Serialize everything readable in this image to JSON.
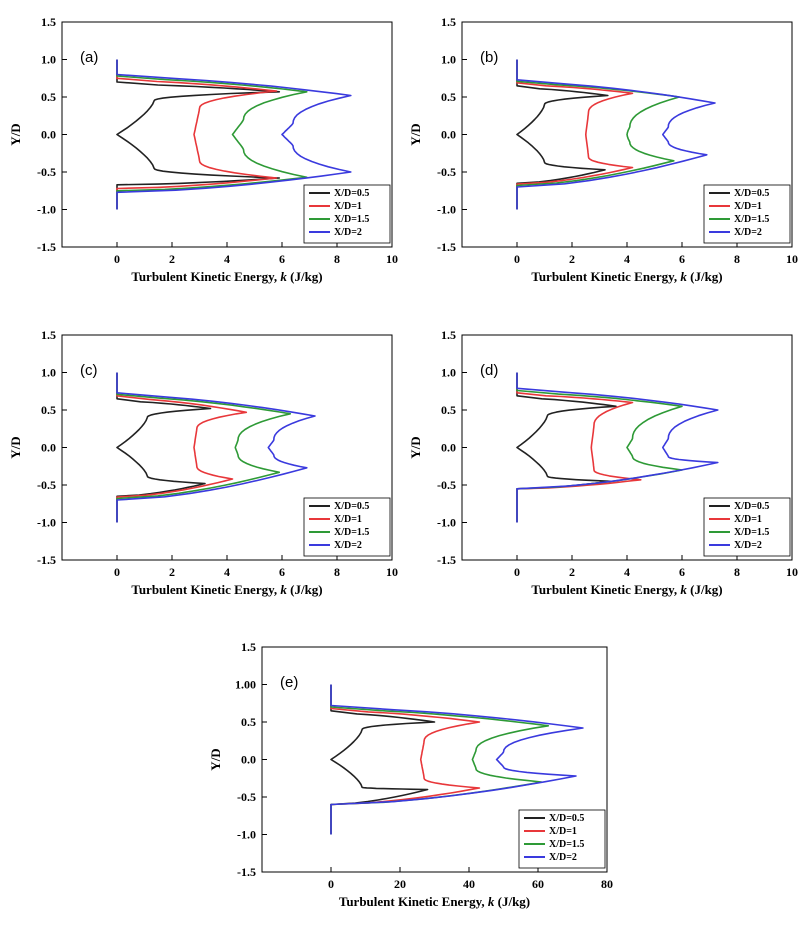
{
  "colors": {
    "black": "#222222",
    "red": "#e8373a",
    "green": "#2e9a36",
    "blue": "#3a3ade"
  },
  "chart_data": [
    {
      "type": "line",
      "label": "(a)",
      "xlabel": "Turbulent Kinetic Energy, k (J/kg)",
      "xlabel_prefix": "Turbulent Kinetic Energy,",
      "xlabel_var": "k",
      "xlabel_suffix": "(J/kg)",
      "ylabel": "Y/D",
      "xlim": [
        -2,
        10
      ],
      "ylim": [
        -1.5,
        1.5
      ],
      "xticks": [
        "0",
        "2",
        "4",
        "6",
        "8",
        "10"
      ],
      "yticks": [
        "1.5",
        "1.0",
        "0.5",
        "0.0",
        "-0.5",
        "-1.0",
        "-1.5"
      ],
      "legend": [
        "X/D=0.5",
        "X/D=1",
        "X/D=1.5",
        "X/D=2"
      ],
      "series": [
        {
          "name": "X/D=0.5",
          "edge": 0.67,
          "peak_y": 0.57,
          "peak_x": 5.9,
          "shoulder_y": 0.45,
          "shoulder_x": 1.35,
          "center_x": 0.0,
          "slope_x": 1.15,
          "lower_peak_y": -0.58,
          "lower_peak_x": 5.9,
          "lower_shoulder_y": -0.45,
          "lower_shoulder_x": 1.35,
          "lower_edge": -0.67
        },
        {
          "name": "X/D=1",
          "edge": 0.72,
          "peak_y": 0.58,
          "peak_x": 5.8,
          "shoulder_y": 0.35,
          "shoulder_x": 3.0,
          "center_x": 2.8,
          "slope_x": 2.9,
          "lower_peak_y": -0.58,
          "lower_peak_x": 5.8,
          "lower_shoulder_y": -0.35,
          "lower_shoulder_x": 3.0,
          "lower_edge": -0.72
        },
        {
          "name": "X/D=1.5",
          "edge": 0.75,
          "peak_y": 0.57,
          "peak_x": 6.9,
          "shoulder_y": 0.2,
          "shoulder_x": 4.6,
          "center_x": 4.2,
          "slope_x": 4.4,
          "lower_peak_y": -0.57,
          "lower_peak_x": 6.9,
          "lower_shoulder_y": -0.2,
          "lower_shoulder_x": 4.6,
          "lower_edge": -0.75
        },
        {
          "name": "X/D=2",
          "edge": 0.77,
          "peak_y": 0.52,
          "peak_x": 8.5,
          "shoulder_y": 0.15,
          "shoulder_x": 6.4,
          "center_x": 6.0,
          "slope_x": 6.2,
          "lower_peak_y": -0.5,
          "lower_peak_x": 8.5,
          "lower_shoulder_y": -0.15,
          "lower_shoulder_x": 6.4,
          "lower_edge": -0.77
        }
      ]
    },
    {
      "type": "line",
      "label": "(b)",
      "xlabel": "Turbulent Kinetic Energy, k (J/kg)",
      "xlabel_prefix": "Turbulent Kinetic Energy,",
      "xlabel_var": "k",
      "xlabel_suffix": "(J/kg)",
      "ylabel": "Y/D",
      "xlim": [
        -2,
        10
      ],
      "ylim": [
        -1.5,
        1.5
      ],
      "xticks": [
        "0",
        "2",
        "4",
        "6",
        "8",
        "10"
      ],
      "yticks": [
        "1.5",
        "1.0",
        "0.5",
        "0.0",
        "-0.5",
        "-1.0",
        "-1.5"
      ],
      "legend": [
        "X/D=0.5",
        "X/D=1",
        "X/D=1.5",
        "X/D=2"
      ],
      "series": [
        {
          "name": "X/D=0.5",
          "edge": 0.62,
          "peak_y": 0.52,
          "peak_x": 3.3,
          "shoulder_y": 0.4,
          "shoulder_x": 1.0,
          "center_x": 0.0,
          "slope_x": 0.9,
          "lower_peak_y": -0.47,
          "lower_peak_x": 3.2,
          "lower_shoulder_y": -0.37,
          "lower_shoulder_x": 1.0,
          "lower_edge": -0.65
        },
        {
          "name": "X/D=1",
          "edge": 0.66,
          "peak_y": 0.55,
          "peak_x": 4.2,
          "shoulder_y": 0.3,
          "shoulder_x": 2.6,
          "center_x": 2.5,
          "slope_x": 2.55,
          "lower_peak_y": -0.44,
          "lower_peak_x": 4.2,
          "lower_shoulder_y": -0.3,
          "lower_shoulder_x": 2.6,
          "lower_edge": -0.66
        },
        {
          "name": "X/D=1.5",
          "edge": 0.68,
          "peak_y": 0.5,
          "peak_x": 5.9,
          "shoulder_y": 0.1,
          "shoulder_x": 4.1,
          "center_x": 4.0,
          "slope_x": 4.0,
          "lower_peak_y": -0.35,
          "lower_peak_x": 5.7,
          "lower_shoulder_y": -0.1,
          "lower_shoulder_x": 4.1,
          "lower_edge": -0.68
        },
        {
          "name": "X/D=2",
          "edge": 0.7,
          "peak_y": 0.42,
          "peak_x": 7.2,
          "shoulder_y": 0.1,
          "shoulder_x": 5.5,
          "center_x": 5.3,
          "slope_x": 5.4,
          "lower_peak_y": -0.27,
          "lower_peak_x": 6.9,
          "lower_shoulder_y": -0.1,
          "lower_shoulder_x": 5.5,
          "lower_edge": -0.7
        }
      ]
    },
    {
      "type": "line",
      "label": "(c)",
      "xlabel": "Turbulent Kinetic Energy, k (J/kg)",
      "xlabel_prefix": "Turbulent Kinetic Energy,",
      "xlabel_var": "k",
      "xlabel_suffix": "(J/kg)",
      "ylabel": "Y/D",
      "xlim": [
        -2,
        10
      ],
      "ylim": [
        -1.5,
        1.5
      ],
      "xticks": [
        "0",
        "2",
        "4",
        "6",
        "8",
        "10"
      ],
      "yticks": [
        "1.5",
        "1.0",
        "0.5",
        "0.0",
        "-0.5",
        "-1.0",
        "-1.5"
      ],
      "legend": [
        "X/D=0.5",
        "X/D=1",
        "X/D=1.5",
        "X/D=2"
      ],
      "series": [
        {
          "name": "X/D=0.5",
          "edge": 0.62,
          "peak_y": 0.52,
          "peak_x": 3.4,
          "shoulder_y": 0.4,
          "shoulder_x": 1.1,
          "center_x": 0.0,
          "slope_x": 0.95,
          "lower_peak_y": -0.48,
          "lower_peak_x": 3.2,
          "lower_shoulder_y": -0.38,
          "lower_shoulder_x": 1.1,
          "lower_edge": -0.65
        },
        {
          "name": "X/D=1",
          "edge": 0.66,
          "peak_y": 0.47,
          "peak_x": 4.7,
          "shoulder_y": 0.25,
          "shoulder_x": 2.9,
          "center_x": 2.8,
          "slope_x": 2.85,
          "lower_peak_y": -0.42,
          "lower_peak_x": 4.2,
          "lower_shoulder_y": -0.25,
          "lower_shoulder_x": 2.9,
          "lower_edge": -0.66
        },
        {
          "name": "X/D=1.5",
          "edge": 0.68,
          "peak_y": 0.45,
          "peak_x": 6.3,
          "shoulder_y": 0.1,
          "shoulder_x": 4.4,
          "center_x": 4.3,
          "slope_x": 4.35,
          "lower_peak_y": -0.33,
          "lower_peak_x": 5.9,
          "lower_shoulder_y": -0.1,
          "lower_shoulder_x": 4.4,
          "lower_edge": -0.68
        },
        {
          "name": "X/D=2",
          "edge": 0.7,
          "peak_y": 0.42,
          "peak_x": 7.2,
          "shoulder_y": 0.1,
          "shoulder_x": 5.7,
          "center_x": 5.5,
          "slope_x": 5.6,
          "lower_peak_y": -0.27,
          "lower_peak_x": 6.9,
          "lower_shoulder_y": -0.1,
          "lower_shoulder_x": 5.7,
          "lower_edge": -0.7
        }
      ]
    },
    {
      "type": "line",
      "label": "(d)",
      "xlabel": "Turbulent Kinetic Energy, k (J/kg)",
      "xlabel_prefix": "Turbulent Kinetic Energy,",
      "xlabel_var": "k",
      "xlabel_suffix": "(J/kg)",
      "ylabel": "Y/D",
      "xlim": [
        -2,
        10
      ],
      "ylim": [
        -1.5,
        1.5
      ],
      "xticks": [
        "0",
        "2",
        "4",
        "6",
        "8",
        "10"
      ],
      "yticks": [
        "1.5",
        "1.0",
        "0.5",
        "0.0",
        "-0.5",
        "-1.0",
        "-1.5"
      ],
      "legend": [
        "X/D=0.5",
        "X/D=1",
        "X/D=1.5",
        "X/D=2"
      ],
      "series": [
        {
          "name": "X/D=0.5",
          "edge": 0.66,
          "peak_y": 0.55,
          "peak_x": 3.6,
          "shoulder_y": 0.42,
          "shoulder_x": 1.1,
          "center_x": 0.0,
          "slope_x": 0.95,
          "lower_peak_y": -0.45,
          "lower_peak_x": 3.4,
          "lower_shoulder_y": -0.38,
          "lower_shoulder_x": 1.1,
          "lower_edge": -0.55
        },
        {
          "name": "X/D=1",
          "edge": 0.7,
          "peak_y": 0.6,
          "peak_x": 4.2,
          "shoulder_y": 0.3,
          "shoulder_x": 2.8,
          "center_x": 2.7,
          "slope_x": 2.75,
          "lower_peak_y": -0.43,
          "lower_peak_x": 4.5,
          "lower_shoulder_y": -0.3,
          "lower_shoulder_x": 2.8,
          "lower_edge": -0.55
        },
        {
          "name": "X/D=1.5",
          "edge": 0.73,
          "peak_y": 0.55,
          "peak_x": 6.0,
          "shoulder_y": 0.12,
          "shoulder_x": 4.2,
          "center_x": 4.0,
          "slope_x": 4.1,
          "lower_peak_y": -0.3,
          "lower_peak_x": 6.0,
          "lower_shoulder_y": -0.12,
          "lower_shoulder_x": 4.2,
          "lower_edge": -0.55
        },
        {
          "name": "X/D=2",
          "edge": 0.76,
          "peak_y": 0.5,
          "peak_x": 7.3,
          "shoulder_y": 0.12,
          "shoulder_x": 5.5,
          "center_x": 5.3,
          "slope_x": 5.4,
          "lower_peak_y": -0.2,
          "lower_peak_x": 7.3,
          "lower_shoulder_y": -0.12,
          "lower_shoulder_x": 5.5,
          "lower_edge": -0.55
        }
      ]
    },
    {
      "type": "line",
      "label": "(e)",
      "xlabel": "Turbulent Kinetic Energy, k (J/kg)",
      "xlabel_prefix": "Turbulent Kinetic Energy,",
      "xlabel_var": "k",
      "xlabel_suffix": "(J/kg)",
      "ylabel": "Y/D",
      "xlim": [
        -20,
        80
      ],
      "ylim": [
        -1.5,
        1.5
      ],
      "xticks": [
        "0",
        "20",
        "40",
        "60",
        "80"
      ],
      "yticks": [
        "1.5",
        "1.00",
        "0.5",
        "0.0",
        "-0.5",
        "-1.0",
        "-1.5"
      ],
      "legend": [
        "X/D=0.5",
        "X/D=1",
        "X/D=1.5",
        "X/D=2"
      ],
      "series": [
        {
          "name": "X/D=0.5",
          "edge": 0.62,
          "peak_y": 0.5,
          "peak_x": 30,
          "shoulder_y": 0.4,
          "shoulder_x": 9,
          "center_x": 0,
          "slope_x": 8,
          "lower_peak_y": -0.4,
          "lower_peak_x": 28,
          "lower_shoulder_y": -0.37,
          "lower_shoulder_x": 9,
          "lower_edge": -0.6
        },
        {
          "name": "X/D=1",
          "edge": 0.65,
          "peak_y": 0.5,
          "peak_x": 43,
          "shoulder_y": 0.25,
          "shoulder_x": 27,
          "center_x": 26,
          "slope_x": 26.5,
          "lower_peak_y": -0.38,
          "lower_peak_x": 43,
          "lower_shoulder_y": -0.25,
          "lower_shoulder_x": 27,
          "lower_edge": -0.6
        },
        {
          "name": "X/D=1.5",
          "edge": 0.67,
          "peak_y": 0.45,
          "peak_x": 63,
          "shoulder_y": 0.12,
          "shoulder_x": 42,
          "center_x": 41,
          "slope_x": 41.5,
          "lower_peak_y": -0.3,
          "lower_peak_x": 61,
          "lower_shoulder_y": -0.12,
          "lower_shoulder_x": 42,
          "lower_edge": -0.6
        },
        {
          "name": "X/D=2",
          "edge": 0.69,
          "peak_y": 0.42,
          "peak_x": 73,
          "shoulder_y": 0.1,
          "shoulder_x": 50,
          "center_x": 48,
          "slope_x": 49,
          "lower_peak_y": -0.22,
          "lower_peak_x": 71,
          "lower_shoulder_y": -0.1,
          "lower_shoulder_x": 50,
          "lower_edge": -0.6
        }
      ]
    }
  ]
}
